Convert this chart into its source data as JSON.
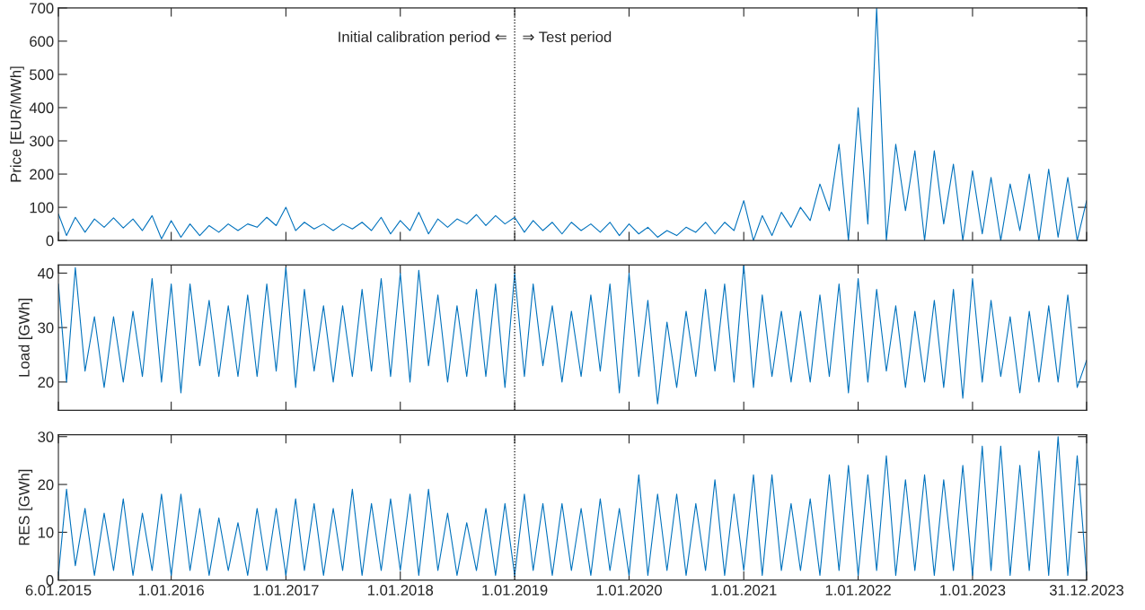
{
  "chart_data": [
    {
      "type": "line",
      "ylabel": "Price [EUR/MWh]",
      "xlim": [
        "2015-01-06",
        "2023-12-31"
      ],
      "ylim": [
        0,
        700
      ],
      "yticks": [
        0,
        100,
        200,
        300,
        400,
        500,
        600,
        700
      ],
      "xticks": [
        {
          "value": "2015-01-06",
          "label": null
        },
        {
          "value": "2016-01-01",
          "label": null
        },
        {
          "value": "2017-01-01",
          "label": null
        },
        {
          "value": "2018-01-01",
          "label": null
        },
        {
          "value": "2019-01-01",
          "label": null
        },
        {
          "value": "2020-01-01",
          "label": null
        },
        {
          "value": "2021-01-01",
          "label": null
        },
        {
          "value": "2022-01-01",
          "label": null
        },
        {
          "value": "2023-01-01",
          "label": null
        },
        {
          "value": "2023-12-31",
          "label": null
        }
      ],
      "tick_labels": "y",
      "grid": false,
      "legend": false,
      "ref_lines": [
        {
          "axis": "x",
          "value": "2019-01-01",
          "color": "#000000",
          "line_style": "dotted"
        }
      ],
      "annotations": [
        "Initial calibration period ⇐",
        "⇒ Test period"
      ],
      "x": [
        "2015-01-06",
        "2015-02-01",
        "2015-03-01",
        "2015-04-01",
        "2015-05-01",
        "2015-06-01",
        "2015-07-01",
        "2015-08-01",
        "2015-09-01",
        "2015-10-01",
        "2015-11-01",
        "2015-12-01",
        "2016-01-01",
        "2016-02-01",
        "2016-03-01",
        "2016-04-01",
        "2016-05-01",
        "2016-06-01",
        "2016-07-01",
        "2016-08-01",
        "2016-09-01",
        "2016-10-01",
        "2016-11-01",
        "2016-12-01",
        "2017-01-01",
        "2017-02-01",
        "2017-03-01",
        "2017-04-01",
        "2017-05-01",
        "2017-06-01",
        "2017-07-01",
        "2017-08-01",
        "2017-09-01",
        "2017-10-01",
        "2017-11-01",
        "2017-12-01",
        "2018-01-01",
        "2018-02-01",
        "2018-03-01",
        "2018-04-01",
        "2018-05-01",
        "2018-06-01",
        "2018-07-01",
        "2018-08-01",
        "2018-09-01",
        "2018-10-01",
        "2018-11-01",
        "2018-12-01",
        "2019-01-01",
        "2019-02-01",
        "2019-03-01",
        "2019-04-01",
        "2019-05-01",
        "2019-06-01",
        "2019-07-01",
        "2019-08-01",
        "2019-09-01",
        "2019-10-01",
        "2019-11-01",
        "2019-12-01",
        "2020-01-01",
        "2020-02-01",
        "2020-03-01",
        "2020-04-01",
        "2020-05-01",
        "2020-06-01",
        "2020-07-01",
        "2020-08-01",
        "2020-09-01",
        "2020-10-01",
        "2020-11-01",
        "2020-12-01",
        "2021-01-01",
        "2021-02-01",
        "2021-03-01",
        "2021-04-01",
        "2021-05-01",
        "2021-06-01",
        "2021-07-01",
        "2021-08-01",
        "2021-09-01",
        "2021-10-01",
        "2021-11-01",
        "2021-12-01",
        "2022-01-01",
        "2022-02-01",
        "2022-03-01",
        "2022-04-01",
        "2022-05-01",
        "2022-06-01",
        "2022-07-01",
        "2022-08-01",
        "2022-09-01",
        "2022-10-01",
        "2022-11-01",
        "2022-12-01",
        "2023-01-01",
        "2023-02-01",
        "2023-03-01",
        "2023-04-01",
        "2023-05-01",
        "2023-06-01",
        "2023-07-01",
        "2023-08-01",
        "2023-09-01",
        "2023-10-01",
        "2023-11-01",
        "2023-12-01",
        "2023-12-31"
      ],
      "series": [
        {
          "color": "#0072bd",
          "values": [
            80,
            15,
            70,
            25,
            65,
            40,
            68,
            38,
            65,
            30,
            75,
            5,
            60,
            10,
            50,
            15,
            45,
            25,
            50,
            30,
            50,
            40,
            70,
            45,
            100,
            30,
            55,
            35,
            50,
            30,
            50,
            35,
            55,
            30,
            70,
            20,
            60,
            30,
            85,
            20,
            65,
            40,
            65,
            50,
            78,
            45,
            75,
            50,
            70,
            25,
            60,
            30,
            55,
            20,
            55,
            30,
            50,
            25,
            55,
            15,
            50,
            20,
            40,
            10,
            30,
            15,
            40,
            25,
            55,
            20,
            55,
            30,
            120,
            0,
            75,
            15,
            85,
            40,
            100,
            60,
            170,
            90,
            290,
            0,
            400,
            50,
            700,
            0,
            290,
            90,
            270,
            0,
            270,
            50,
            230,
            0,
            210,
            20,
            190,
            0,
            170,
            30,
            200,
            0,
            215,
            10,
            190,
            0,
            120
          ]
        }
      ]
    },
    {
      "type": "line",
      "ylabel": "Load [GWh]",
      "xlim": [
        "2015-01-06",
        "2023-12-31"
      ],
      "ylim": [
        14.8,
        41.5
      ],
      "yticks": [
        20,
        30,
        40
      ],
      "xticks": [
        {
          "value": "2015-01-06",
          "label": null
        },
        {
          "value": "2016-01-01",
          "label": null
        },
        {
          "value": "2017-01-01",
          "label": null
        },
        {
          "value": "2018-01-01",
          "label": null
        },
        {
          "value": "2019-01-01",
          "label": null
        },
        {
          "value": "2020-01-01",
          "label": null
        },
        {
          "value": "2021-01-01",
          "label": null
        },
        {
          "value": "2022-01-01",
          "label": null
        },
        {
          "value": "2023-01-01",
          "label": null
        },
        {
          "value": "2023-12-31",
          "label": null
        }
      ],
      "tick_labels": "y",
      "grid": false,
      "legend": false,
      "ref_lines": [
        {
          "axis": "x",
          "value": "2019-01-01",
          "color": "#000000",
          "line_style": "dotted"
        }
      ],
      "x": [
        "2015-01-06",
        "2015-02-01",
        "2015-03-01",
        "2015-04-01",
        "2015-05-01",
        "2015-06-01",
        "2015-07-01",
        "2015-08-01",
        "2015-09-01",
        "2015-10-01",
        "2015-11-01",
        "2015-12-01",
        "2016-01-01",
        "2016-02-01",
        "2016-03-01",
        "2016-04-01",
        "2016-05-01",
        "2016-06-01",
        "2016-07-01",
        "2016-08-01",
        "2016-09-01",
        "2016-10-01",
        "2016-11-01",
        "2016-12-01",
        "2017-01-01",
        "2017-02-01",
        "2017-03-01",
        "2017-04-01",
        "2017-05-01",
        "2017-06-01",
        "2017-07-01",
        "2017-08-01",
        "2017-09-01",
        "2017-10-01",
        "2017-11-01",
        "2017-12-01",
        "2018-01-01",
        "2018-02-01",
        "2018-03-01",
        "2018-04-01",
        "2018-05-01",
        "2018-06-01",
        "2018-07-01",
        "2018-08-01",
        "2018-09-01",
        "2018-10-01",
        "2018-11-01",
        "2018-12-01",
        "2019-01-01",
        "2019-02-01",
        "2019-03-01",
        "2019-04-01",
        "2019-05-01",
        "2019-06-01",
        "2019-07-01",
        "2019-08-01",
        "2019-09-01",
        "2019-10-01",
        "2019-11-01",
        "2019-12-01",
        "2020-01-01",
        "2020-02-01",
        "2020-03-01",
        "2020-04-01",
        "2020-05-01",
        "2020-06-01",
        "2020-07-01",
        "2020-08-01",
        "2020-09-01",
        "2020-10-01",
        "2020-11-01",
        "2020-12-01",
        "2021-01-01",
        "2021-02-01",
        "2021-03-01",
        "2021-04-01",
        "2021-05-01",
        "2021-06-01",
        "2021-07-01",
        "2021-08-01",
        "2021-09-01",
        "2021-10-01",
        "2021-11-01",
        "2021-12-01",
        "2022-01-01",
        "2022-02-01",
        "2022-03-01",
        "2022-04-01",
        "2022-05-01",
        "2022-06-01",
        "2022-07-01",
        "2022-08-01",
        "2022-09-01",
        "2022-10-01",
        "2022-11-01",
        "2022-12-01",
        "2023-01-01",
        "2023-02-01",
        "2023-03-01",
        "2023-04-01",
        "2023-05-01",
        "2023-06-01",
        "2023-07-01",
        "2023-08-01",
        "2023-09-01",
        "2023-10-01",
        "2023-11-01",
        "2023-12-01",
        "2023-12-31"
      ],
      "series": [
        {
          "color": "#0072bd",
          "values": [
            38,
            20,
            41,
            22,
            32,
            19,
            32,
            20,
            33,
            21,
            39,
            20,
            38,
            18,
            38,
            23,
            35,
            21,
            34,
            21,
            36,
            21,
            38,
            22,
            41,
            19,
            37,
            22,
            34,
            20,
            34,
            21,
            37,
            22,
            39,
            21,
            40,
            20,
            40.5,
            23,
            36,
            20,
            34,
            21,
            37,
            21,
            38,
            19,
            40,
            21,
            38,
            23,
            34,
            20,
            33,
            21,
            36,
            22,
            38,
            18,
            40,
            21,
            35,
            16,
            31,
            19,
            33,
            21,
            37,
            22,
            38,
            20,
            41.5,
            19,
            36,
            21,
            33,
            20,
            33,
            20,
            36,
            21,
            38,
            18,
            39,
            20,
            37,
            22,
            34,
            19,
            33,
            20,
            35,
            19,
            37,
            17,
            39,
            20,
            35,
            21,
            32,
            18,
            33,
            20,
            34,
            20,
            36,
            19,
            24
          ]
        }
      ]
    },
    {
      "type": "line",
      "ylabel": "RES [GWh]",
      "xlim": [
        "2015-01-06",
        "2023-12-31"
      ],
      "ylim": [
        0,
        30.4
      ],
      "yticks": [
        0,
        10,
        20,
        30
      ],
      "xticks": [
        {
          "value": "2015-01-06",
          "label": "6.01.2015"
        },
        {
          "value": "2016-01-01",
          "label": "1.01.2016"
        },
        {
          "value": "2017-01-01",
          "label": "1.01.2017"
        },
        {
          "value": "2018-01-01",
          "label": "1.01.2018"
        },
        {
          "value": "2019-01-01",
          "label": "1.01.2019"
        },
        {
          "value": "2020-01-01",
          "label": "1.01.2020"
        },
        {
          "value": "2021-01-01",
          "label": "1.01.2021"
        },
        {
          "value": "2022-01-01",
          "label": "1.01.2022"
        },
        {
          "value": "2023-01-01",
          "label": "1.01.2023"
        },
        {
          "value": "2023-12-31",
          "label": "31.12.2023"
        }
      ],
      "grid": false,
      "legend": false,
      "ref_lines": [
        {
          "axis": "x",
          "value": "2019-01-01",
          "color": "#000000",
          "line_style": "dotted"
        }
      ],
      "x": [
        "2015-01-06",
        "2015-02-01",
        "2015-03-01",
        "2015-04-01",
        "2015-05-01",
        "2015-06-01",
        "2015-07-01",
        "2015-08-01",
        "2015-09-01",
        "2015-10-01",
        "2015-11-01",
        "2015-12-01",
        "2016-01-01",
        "2016-02-01",
        "2016-03-01",
        "2016-04-01",
        "2016-05-01",
        "2016-06-01",
        "2016-07-01",
        "2016-08-01",
        "2016-09-01",
        "2016-10-01",
        "2016-11-01",
        "2016-12-01",
        "2017-01-01",
        "2017-02-01",
        "2017-03-01",
        "2017-04-01",
        "2017-05-01",
        "2017-06-01",
        "2017-07-01",
        "2017-08-01",
        "2017-09-01",
        "2017-10-01",
        "2017-11-01",
        "2017-12-01",
        "2018-01-01",
        "2018-02-01",
        "2018-03-01",
        "2018-04-01",
        "2018-05-01",
        "2018-06-01",
        "2018-07-01",
        "2018-08-01",
        "2018-09-01",
        "2018-10-01",
        "2018-11-01",
        "2018-12-01",
        "2019-01-01",
        "2019-02-01",
        "2019-03-01",
        "2019-04-01",
        "2019-05-01",
        "2019-06-01",
        "2019-07-01",
        "2019-08-01",
        "2019-09-01",
        "2019-10-01",
        "2019-11-01",
        "2019-12-01",
        "2020-01-01",
        "2020-02-01",
        "2020-03-01",
        "2020-04-01",
        "2020-05-01",
        "2020-06-01",
        "2020-07-01",
        "2020-08-01",
        "2020-09-01",
        "2020-10-01",
        "2020-11-01",
        "2020-12-01",
        "2021-01-01",
        "2021-02-01",
        "2021-03-01",
        "2021-04-01",
        "2021-05-01",
        "2021-06-01",
        "2021-07-01",
        "2021-08-01",
        "2021-09-01",
        "2021-10-01",
        "2021-11-01",
        "2021-12-01",
        "2022-01-01",
        "2022-02-01",
        "2022-03-01",
        "2022-04-01",
        "2022-05-01",
        "2022-06-01",
        "2022-07-01",
        "2022-08-01",
        "2022-09-01",
        "2022-10-01",
        "2022-11-01",
        "2022-12-01",
        "2023-01-01",
        "2023-02-01",
        "2023-03-01",
        "2023-04-01",
        "2023-05-01",
        "2023-06-01",
        "2023-07-01",
        "2023-08-01",
        "2023-09-01",
        "2023-10-01",
        "2023-11-01",
        "2023-12-01",
        "2023-12-31"
      ],
      "series": [
        {
          "color": "#0072bd",
          "values": [
            1,
            19,
            3,
            15,
            1,
            14,
            2,
            17,
            1,
            14,
            2,
            18,
            1,
            18,
            2,
            15,
            1,
            13,
            2,
            12,
            1,
            15,
            2,
            15,
            1,
            17,
            2,
            16,
            1,
            15,
            2,
            19,
            1,
            16,
            2,
            17,
            2,
            18,
            1,
            19,
            2,
            14,
            1,
            12,
            2,
            15,
            1,
            16,
            1,
            18,
            2,
            16,
            1,
            16,
            2,
            15,
            1,
            17,
            2,
            15,
            1,
            22,
            1,
            18,
            2,
            18,
            1,
            16,
            2,
            21,
            1,
            18,
            2,
            22,
            1,
            22,
            2,
            16,
            2,
            17,
            1,
            22,
            2,
            24,
            1,
            22,
            2,
            26,
            1,
            21,
            2,
            22,
            1,
            21,
            2,
            24,
            1,
            28,
            2,
            28,
            1,
            24,
            2,
            27,
            1,
            30,
            1,
            26,
            1
          ]
        }
      ]
    }
  ]
}
